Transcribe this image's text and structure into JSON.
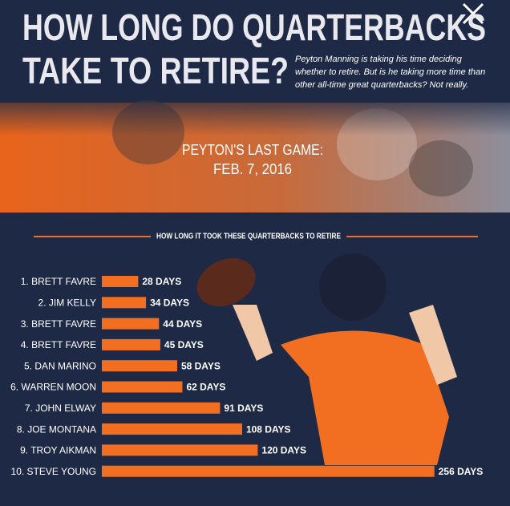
{
  "header": {
    "title": [
      "HOW LONG DO QUARTERBACKS",
      "TAKE TO RETIRE?"
    ],
    "subtitle": "Peyton Manning is taking his time deciding whether to retire. But is he taking more time than other all-time great quarterbacks? Not really."
  },
  "banner": {
    "lines": [
      "PEYTON'S LAST GAME:",
      "FEB. 7, 2016"
    ]
  },
  "chart_data": {
    "type": "hbar",
    "title": "HOW LONG IT TOOK THESE QUARTERBACKS TO RETIRE",
    "categories": [
      "1. BRETT FAVRE",
      "2. JIM KELLY",
      "3. BRETT FAVRE",
      "4. BRETT FAVRE",
      "5. DAN MARINO",
      "6. WARREN MOON",
      "7. JOHN ELWAY",
      "8. JOE MONTANA",
      "9. TROY AIKMAN",
      "10. STEVE YOUNG"
    ],
    "values": [
      28,
      34,
      44,
      45,
      58,
      62,
      91,
      108,
      120,
      256
    ],
    "value_labels": [
      "28 DAYS",
      "34 DAYS",
      "44 DAYS",
      "45 DAYS",
      "58 DAYS",
      "62 DAYS",
      "91 DAYS",
      "108 DAYS",
      "120 DAYS",
      "256 DAYS"
    ],
    "color": "#f26f21"
  }
}
